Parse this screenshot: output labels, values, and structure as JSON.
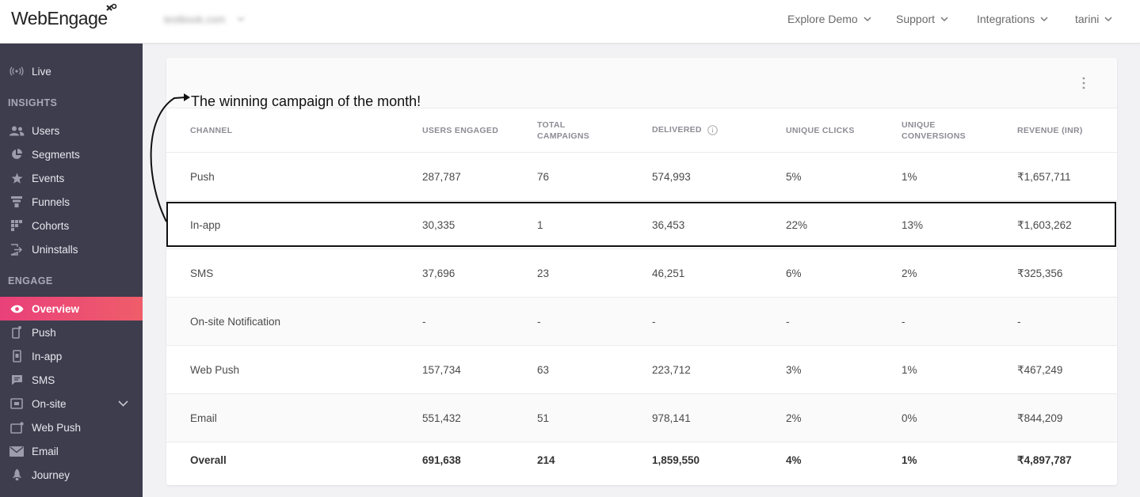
{
  "header": {
    "logo_text": "WebEngage",
    "project_name": "testbook.com",
    "nav": [
      {
        "label": "Explore Demo"
      },
      {
        "label": "Support"
      },
      {
        "label": "Integrations"
      },
      {
        "label": "tarini"
      }
    ]
  },
  "sidebar": {
    "live": "Live",
    "insights_title": "INSIGHTS",
    "insights": [
      {
        "label": "Users",
        "icon": "users-icon"
      },
      {
        "label": "Segments",
        "icon": "pie-icon"
      },
      {
        "label": "Events",
        "icon": "star-icon"
      },
      {
        "label": "Funnels",
        "icon": "funnel-icon"
      },
      {
        "label": "Cohorts",
        "icon": "grid-icon"
      },
      {
        "label": "Uninstalls",
        "icon": "uninstall-icon"
      }
    ],
    "engage_title": "ENGAGE",
    "engage": [
      {
        "label": "Overview",
        "icon": "eye-icon",
        "active": true
      },
      {
        "label": "Push",
        "icon": "phone-icon"
      },
      {
        "label": "In-app",
        "icon": "inapp-icon"
      },
      {
        "label": "SMS",
        "icon": "sms-icon"
      },
      {
        "label": "On-site",
        "icon": "onsite-icon"
      },
      {
        "label": "Web Push",
        "icon": "webpush-icon"
      },
      {
        "label": "Email",
        "icon": "mail-icon"
      },
      {
        "label": "Journey",
        "icon": "rocket-icon"
      }
    ]
  },
  "annotation": "The winning campaign of the month!",
  "table": {
    "headers": {
      "channel": "CHANNEL",
      "users": "USERS ENGAGED",
      "campaigns_1": "TOTAL",
      "campaigns_2": "CAMPAIGNS",
      "delivered": "DELIVERED",
      "clicks": "UNIQUE CLICKS",
      "conv_1": "UNIQUE",
      "conv_2": "CONVERSIONS",
      "revenue": "REVENUE (INR)"
    },
    "rows": [
      {
        "channel": "Push",
        "users": "287,787",
        "campaigns": "76",
        "delivered": "574,993",
        "clicks": "5%",
        "conversions": "1%",
        "revenue": "₹1,657,711"
      },
      {
        "channel": "In-app",
        "users": "30,335",
        "campaigns": "1",
        "delivered": "36,453",
        "clicks": "22%",
        "conversions": "13%",
        "revenue": "₹1,603,262"
      },
      {
        "channel": "SMS",
        "users": "37,696",
        "campaigns": "23",
        "delivered": "46,251",
        "clicks": "6%",
        "conversions": "2%",
        "revenue": "₹325,356"
      },
      {
        "channel": "On-site Notification",
        "users": "-",
        "campaigns": "-",
        "delivered": "-",
        "clicks": "-",
        "conversions": "-",
        "revenue": "-"
      },
      {
        "channel": "Web Push",
        "users": "157,734",
        "campaigns": "63",
        "delivered": "223,712",
        "clicks": "3%",
        "conversions": "1%",
        "revenue": "₹467,249"
      },
      {
        "channel": "Email",
        "users": "551,432",
        "campaigns": "51",
        "delivered": "978,141",
        "clicks": "2%",
        "conversions": "0%",
        "revenue": "₹844,209"
      }
    ],
    "total": {
      "channel": "Overall",
      "users": "691,638",
      "campaigns": "214",
      "delivered": "1,859,550",
      "clicks": "4%",
      "conversions": "1%",
      "revenue": "₹4,897,787"
    }
  }
}
